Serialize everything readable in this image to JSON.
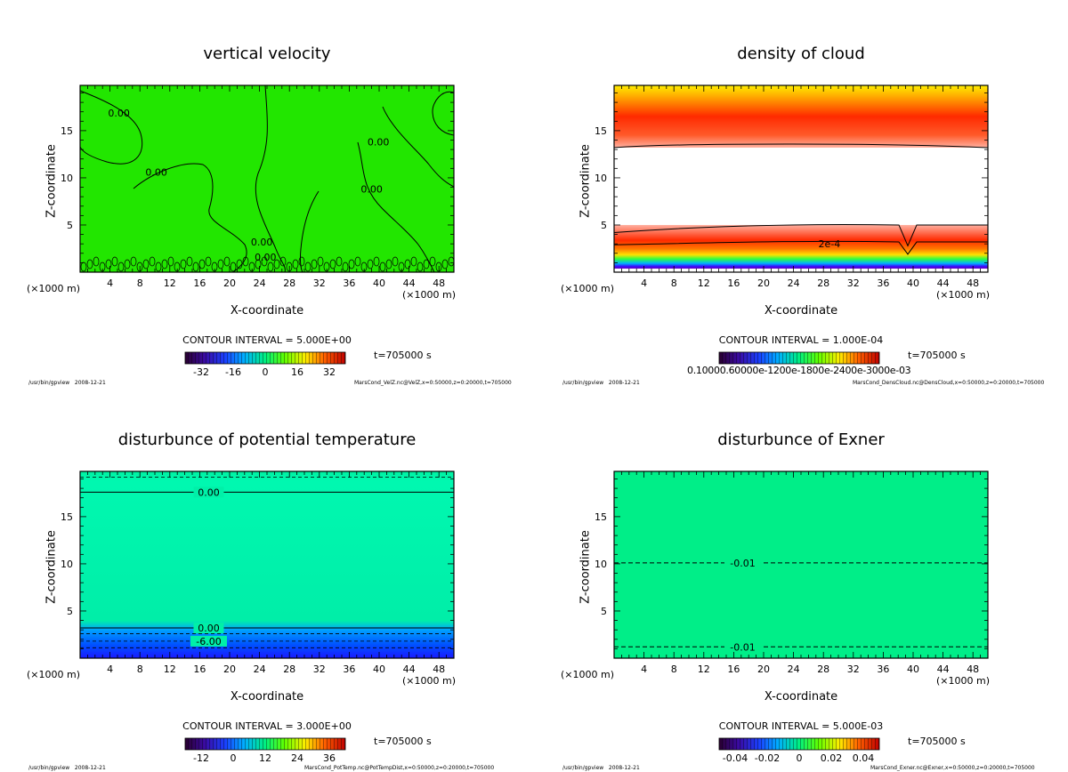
{
  "page": {
    "program": "/usr/bin/gpview",
    "date": "2008-12-21",
    "time_label": "t=705000 s"
  },
  "chart_data": [
    {
      "type": "heatmap",
      "title": "vertical velocity",
      "xlabel": "X-coordinate",
      "ylabel": "Z-coordinate",
      "x_unit": "(×1000 m)",
      "y_unit": "(×1000 m)",
      "xlim": [
        0,
        50
      ],
      "ylim": [
        0,
        19.8
      ],
      "xticks": [
        4,
        8,
        12,
        16,
        20,
        24,
        28,
        32,
        36,
        40,
        44,
        48
      ],
      "yticks": [
        5,
        10,
        15
      ],
      "contour_interval": "CONTOUR INTERVAL = 5.000E+00",
      "contour_labels": [
        {
          "text": "0.00",
          "x": 5.2,
          "z": 16.9
        },
        {
          "text": "0.00",
          "x": 10.2,
          "z": 10.6
        },
        {
          "text": "0.00",
          "x": 24.3,
          "z": 3.2
        },
        {
          "text": "0.00",
          "x": 24.8,
          "z": 1.6
        },
        {
          "text": "0.00",
          "x": 39.9,
          "z": 13.8
        },
        {
          "text": "0.00",
          "x": 39.0,
          "z": 8.8
        }
      ],
      "colorbar": {
        "ticks": [
          "-32",
          "-16",
          "0",
          "16",
          "32"
        ],
        "range": [
          -40,
          40
        ],
        "fill_value": 1
      },
      "file": "MarsCond_VelZ.nc@VelZ,x=0:50000,z=0:20000,t=705000"
    },
    {
      "type": "heatmap",
      "title": "density of cloud",
      "xlabel": "X-coordinate",
      "ylabel": "Z-coordinate",
      "x_unit": "(×1000 m)",
      "y_unit": "(×1000 m)",
      "xlim": [
        0,
        50
      ],
      "ylim": [
        0,
        19.8
      ],
      "xticks": [
        4,
        8,
        12,
        16,
        20,
        24,
        28,
        32,
        36,
        40,
        44,
        48
      ],
      "yticks": [
        5,
        10,
        15
      ],
      "contour_interval": "CONTOUR INTERVAL = 1.000E-04",
      "contour_labels": [
        {
          "text": "2e-4",
          "x": 28.8,
          "z": 3.0
        }
      ],
      "colorbar": {
        "ticks": [
          "0.10000",
          "0.60000",
          "1.20000",
          "1.80000",
          "2.40000",
          "3.00000"
        ],
        "label_overlap_text": "0.10000.60000e-1200e-1800e-2400e-3000e-03",
        "exponent": "e-03"
      },
      "file": "MarsCond_DensCloud.nc@DensCloud,x=0:50000,z=0:20000,t=705000"
    },
    {
      "type": "heatmap",
      "title": "disturbunce of potential temperature",
      "xlabel": "X-coordinate",
      "ylabel": "Z-coordinate",
      "x_unit": "(×1000 m)",
      "y_unit": "(×1000 m)",
      "xlim": [
        0,
        50
      ],
      "ylim": [
        0,
        19.8
      ],
      "xticks": [
        4,
        8,
        12,
        16,
        20,
        24,
        28,
        32,
        36,
        40,
        44,
        48
      ],
      "yticks": [
        5,
        10,
        15
      ],
      "contour_interval": "CONTOUR INTERVAL = 3.000E+00",
      "contour_labels": [
        {
          "text": "0.00",
          "x": 17.2,
          "z": 17.6
        },
        {
          "text": "0.00",
          "x": 17.2,
          "z": 3.2
        },
        {
          "text": "-6.00",
          "x": 17.2,
          "z": 1.8
        }
      ],
      "colorbar": {
        "ticks": [
          "-12",
          "0",
          "12",
          "24",
          "36"
        ],
        "range": [
          -18,
          42
        ]
      },
      "file": "MarsCond_PotTemp.nc@PotTempDist,x=0:50000,z=0:20000,t=705000"
    },
    {
      "type": "heatmap",
      "title": "disturbunce of Exner",
      "xlabel": "X-coordinate",
      "ylabel": "Z-coordinate",
      "x_unit": "(×1000 m)",
      "y_unit": "(×1000 m)",
      "xlim": [
        0,
        50
      ],
      "ylim": [
        0,
        19.8
      ],
      "xticks": [
        4,
        8,
        12,
        16,
        20,
        24,
        28,
        32,
        36,
        40,
        44,
        48
      ],
      "yticks": [
        5,
        10,
        15
      ],
      "contour_interval": "CONTOUR INTERVAL = 5.000E-03",
      "contour_labels": [
        {
          "text": "-0.01",
          "x": 17.2,
          "z": 10.1
        },
        {
          "text": "-0.01",
          "x": 17.2,
          "z": 1.2
        }
      ],
      "colorbar": {
        "ticks": [
          "-0.04",
          "-0.02",
          "0",
          "0.02",
          "0.04"
        ],
        "range": [
          -0.05,
          0.05
        ]
      },
      "file": "MarsCond_Exner.nc@Exner,x=0:50000,z=0:20000,t=705000"
    }
  ],
  "colors": {
    "green_field": "#22e600",
    "teal_field": "#00f0a0",
    "exner_field": "#00ee88",
    "cloud_red": "#ff2a00",
    "cloud_yellow": "#ffee00",
    "deep_blue": "#1a1aff"
  }
}
